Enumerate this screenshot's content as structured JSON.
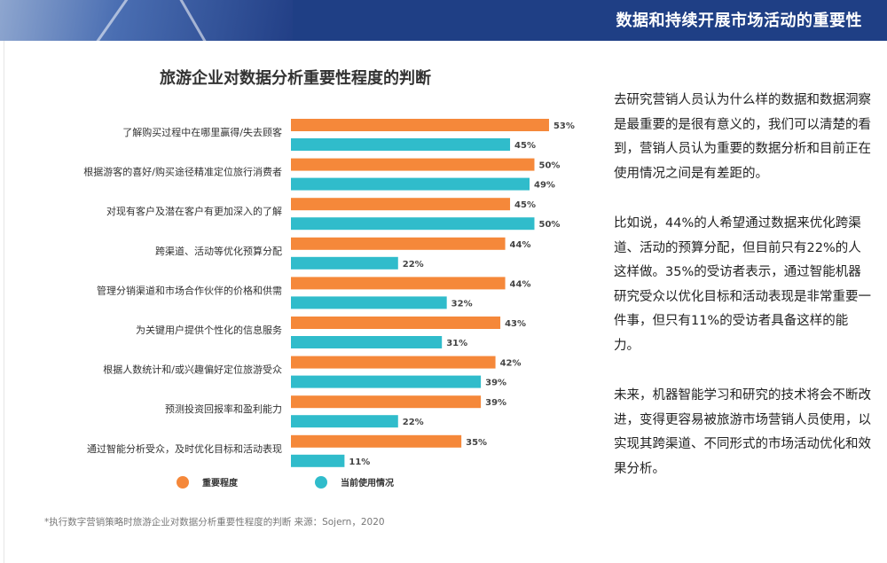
{
  "header": {
    "title": "数据和持续开展市场活动的重要性"
  },
  "colors": {
    "importance": "#f5883a",
    "usage": "#30bccb",
    "header_bg": "#1f3f85"
  },
  "chart_data": {
    "type": "bar",
    "orientation": "horizontal",
    "title": "旅游企业对数据分析重要性程度的判断",
    "categories": [
      "了解购买过程中在哪里赢得/失去顾客",
      "根据游客的喜好/购买途径精准定位旅行消费者",
      "对现有客户及潜在客户有更加深入的了解",
      "跨渠道、活动等优化预算分配",
      "管理分销渠道和市场合作伙伴的价格和供需",
      "为关键用户提供个性化的信息服务",
      "根据人数统计和/或兴趣偏好定位旅游受众",
      "预测投资回报率和盈利能力",
      "通过智能分析受众，及时优化目标和活动表现"
    ],
    "series": [
      {
        "name": "重要程度",
        "color": "#f5883a",
        "values": [
          53,
          50,
          45,
          44,
          44,
          43,
          42,
          39,
          35
        ]
      },
      {
        "name": "当前使用情况",
        "color": "#30bccb",
        "values": [
          45,
          49,
          50,
          22,
          32,
          31,
          39,
          22,
          11
        ]
      }
    ],
    "value_suffix": "%",
    "xlim": [
      0,
      60
    ],
    "grid": false,
    "legend_position": "bottom"
  },
  "footnote": "*执行数字营销策略时旅游企业对数据分析重要性程度的判断  来源：Sojern，2020",
  "side_text": {
    "p1": "去研究营销人员认为什么样的数据和数据洞察是最重要的是很有意义的，我们可以清楚的看到，营销人员认为重要的数据分析和目前正在使用情况之间是有差距的。",
    "p2": "比如说，44%的人希望通过数据来优化跨渠道、活动的预算分配，但目前只有22%的人这样做。35%的受访者表示，通过智能机器研究受众以优化目标和活动表现是非常重要一件事，但只有11%的受访者具备这样的能力。",
    "p3": "未来，机器智能学习和研究的技术将会不断改进，变得更容易被旅游市场营销人员使用，以实现其跨渠道、不同形式的市场活动优化和效果分析。"
  }
}
